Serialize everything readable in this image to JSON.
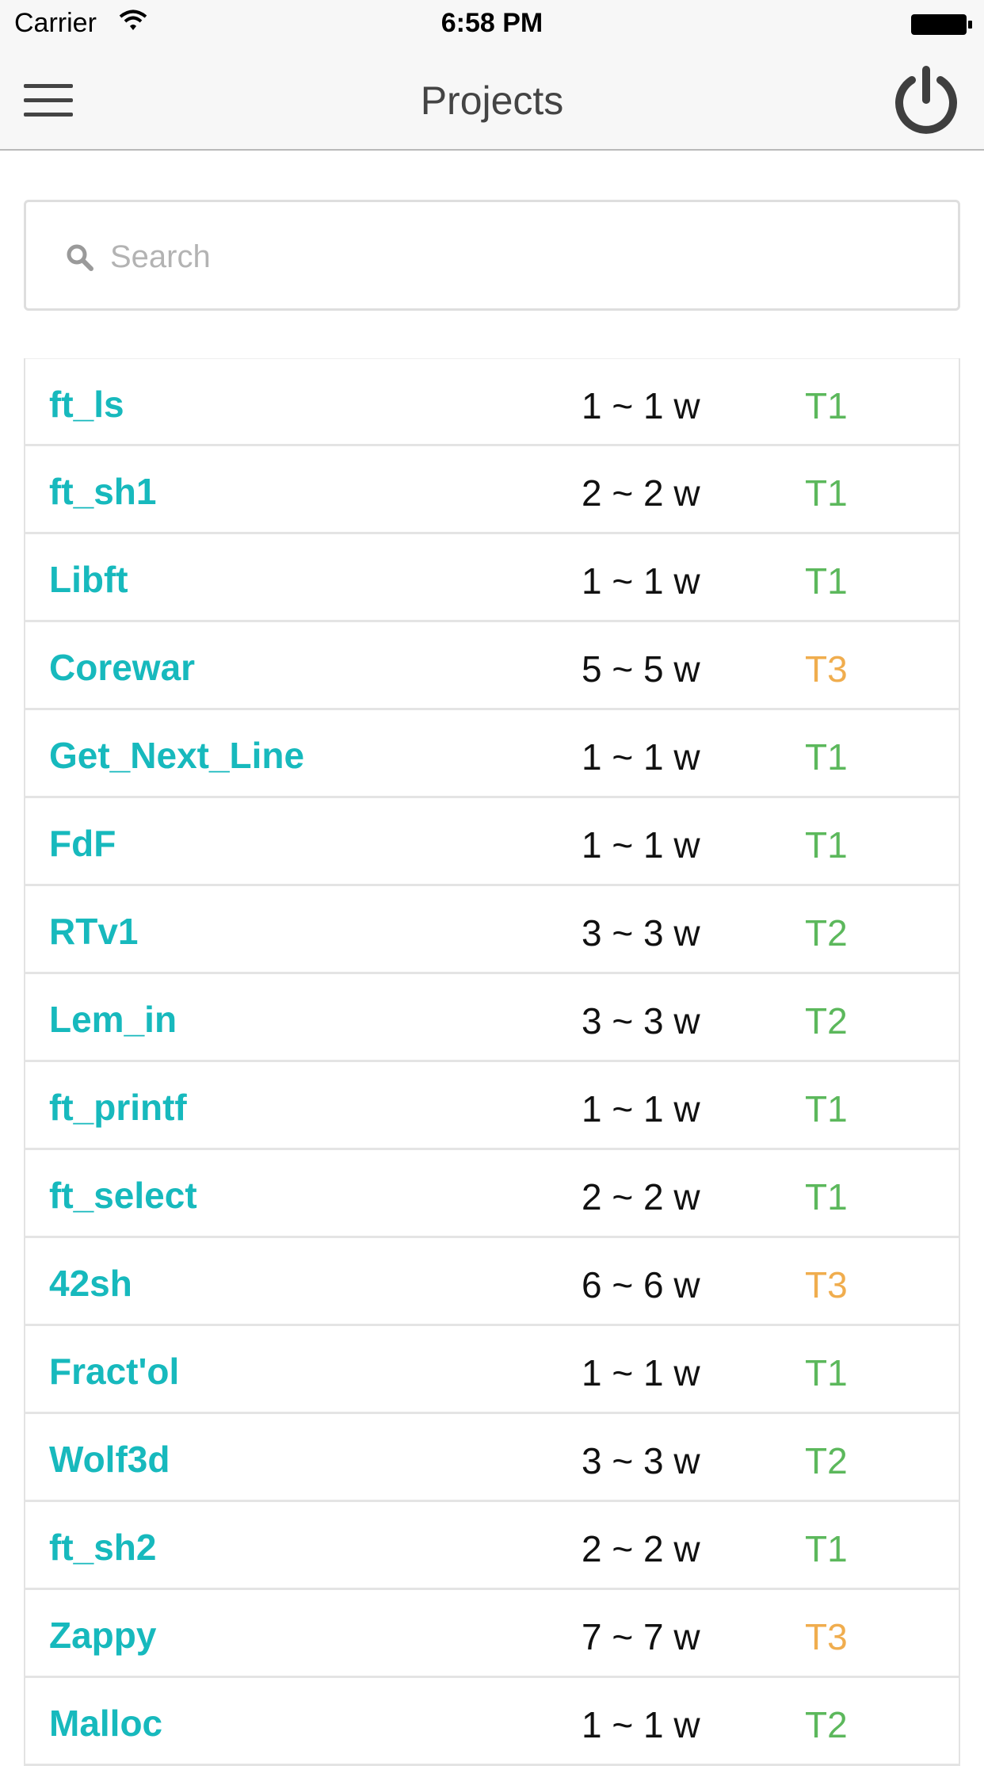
{
  "status_bar": {
    "carrier": "Carrier",
    "time": "6:58 PM"
  },
  "nav": {
    "title": "Projects"
  },
  "search": {
    "placeholder": "Search"
  },
  "projects": [
    {
      "name": "ft_ls",
      "duration": "1 ~ 1 w",
      "tier": "T1"
    },
    {
      "name": "ft_sh1",
      "duration": "2 ~ 2 w",
      "tier": "T1"
    },
    {
      "name": "Libft",
      "duration": "1 ~ 1 w",
      "tier": "T1"
    },
    {
      "name": "Corewar",
      "duration": "5 ~ 5 w",
      "tier": "T3"
    },
    {
      "name": "Get_Next_Line",
      "duration": "1 ~ 1 w",
      "tier": "T1"
    },
    {
      "name": "FdF",
      "duration": "1 ~ 1 w",
      "tier": "T1"
    },
    {
      "name": "RTv1",
      "duration": "3 ~ 3 w",
      "tier": "T2"
    },
    {
      "name": "Lem_in",
      "duration": "3 ~ 3 w",
      "tier": "T2"
    },
    {
      "name": "ft_printf",
      "duration": "1 ~ 1 w",
      "tier": "T1"
    },
    {
      "name": "ft_select",
      "duration": "2 ~ 2 w",
      "tier": "T1"
    },
    {
      "name": "42sh",
      "duration": "6 ~ 6 w",
      "tier": "T3"
    },
    {
      "name": "Fract'ol",
      "duration": "1 ~ 1 w",
      "tier": "T1"
    },
    {
      "name": "Wolf3d",
      "duration": "3 ~ 3 w",
      "tier": "T2"
    },
    {
      "name": "ft_sh2",
      "duration": "2 ~ 2 w",
      "tier": "T1"
    },
    {
      "name": "Zappy",
      "duration": "7 ~ 7 w",
      "tier": "T3"
    },
    {
      "name": "Malloc",
      "duration": "1 ~ 1 w",
      "tier": "T2"
    }
  ],
  "colors": {
    "accent": "#17b9bd",
    "tier_green": "#5cb85c",
    "tier_orange": "#f0ad4e"
  },
  "icons": [
    "menu-icon",
    "power-icon",
    "search-icon",
    "wifi-icon",
    "battery-icon"
  ]
}
